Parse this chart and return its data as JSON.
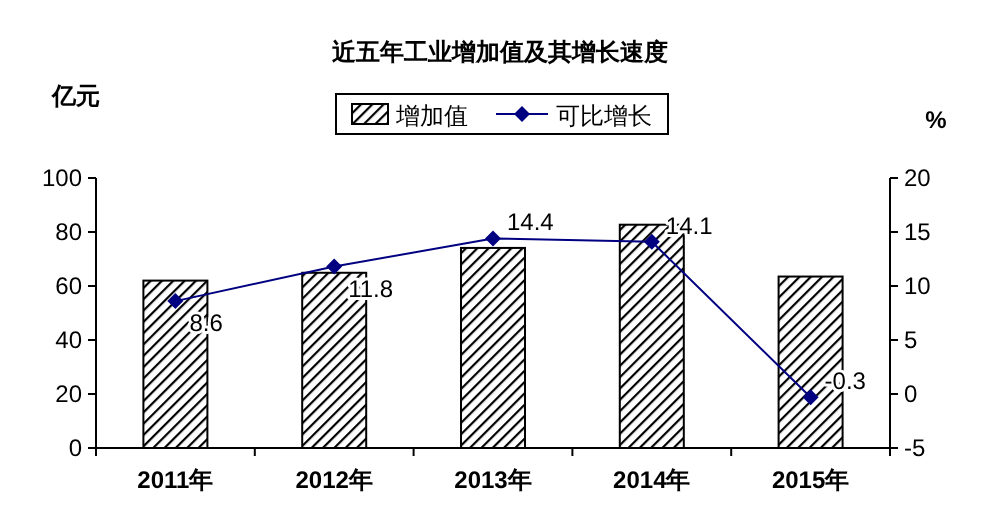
{
  "chart_data": {
    "type": "bar",
    "title": "近五年工业增加值及其增长速度",
    "ylabel": "亿元",
    "y2label": "%",
    "categories": [
      "2011年",
      "2012年",
      "2013年",
      "2014年",
      "2015年"
    ],
    "series": [
      {
        "name": "增加值",
        "color": "#000000",
        "values": [
          62.0,
          64.9,
          74.1,
          82.7,
          63.5
        ]
      },
      {
        "name": "可比增长",
        "type": "line",
        "axis": "y2",
        "color": "#000080",
        "marker": "diamond",
        "values": [
          8.6,
          11.8,
          14.4,
          14.1,
          -0.3
        ],
        "value_labels": [
          "8.6",
          "11.8",
          "14.4",
          "14.1",
          "-0.3"
        ]
      }
    ],
    "ylim": [
      0,
      100
    ],
    "yticks": [
      0,
      20,
      40,
      60,
      80,
      100
    ],
    "y2lim": [
      -5,
      20
    ],
    "y2ticks": [
      -5,
      0,
      5,
      10,
      15,
      20
    ],
    "legend": "top"
  }
}
